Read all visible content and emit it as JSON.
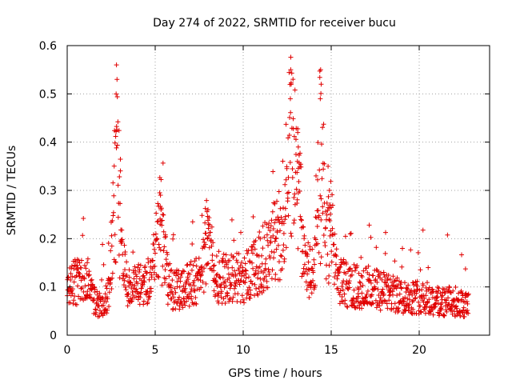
{
  "chart_data": {
    "type": "scatter",
    "title": "Day 274 of 2022, SRMTID for receiver bucu",
    "xlabel": "GPS time / hours",
    "ylabel": "SRMTID / TECUs",
    "xlim": [
      0,
      24
    ],
    "ylim": [
      0,
      0.6
    ],
    "xticks": [
      0,
      5,
      10,
      15,
      20
    ],
    "xtick_labels": [
      "0",
      "5",
      "10",
      "15",
      "20"
    ],
    "yticks": [
      0,
      0.1,
      0.2,
      0.3,
      0.4,
      0.5,
      0.6
    ],
    "ytick_labels": [
      "0",
      "0.1",
      "0.2",
      "0.3",
      "0.4",
      "0.5",
      "0.6"
    ],
    "grid": true,
    "marker": "plus",
    "series_color": "#e00000",
    "x_range": [
      0,
      22.8
    ],
    "baseline_profile": [
      [
        0.0,
        0.1
      ],
      [
        0.5,
        0.11
      ],
      [
        1.0,
        0.12
      ],
      [
        1.5,
        0.07
      ],
      [
        2.0,
        0.06
      ],
      [
        2.5,
        0.1
      ],
      [
        3.0,
        0.14
      ],
      [
        3.5,
        0.1
      ],
      [
        4.0,
        0.1
      ],
      [
        4.5,
        0.11
      ],
      [
        5.0,
        0.14
      ],
      [
        5.5,
        0.13
      ],
      [
        6.0,
        0.09
      ],
      [
        7.0,
        0.11
      ],
      [
        8.0,
        0.12
      ],
      [
        9.0,
        0.12
      ],
      [
        10.0,
        0.12
      ],
      [
        11.0,
        0.15
      ],
      [
        11.5,
        0.18
      ],
      [
        12.0,
        0.2
      ],
      [
        12.5,
        0.22
      ],
      [
        13.0,
        0.2
      ],
      [
        13.5,
        0.14
      ],
      [
        14.0,
        0.12
      ],
      [
        14.5,
        0.14
      ],
      [
        15.0,
        0.13
      ],
      [
        16.0,
        0.1
      ],
      [
        17.0,
        0.1
      ],
      [
        18.0,
        0.09
      ],
      [
        19.0,
        0.08
      ],
      [
        20.0,
        0.08
      ],
      [
        21.0,
        0.07
      ],
      [
        22.0,
        0.07
      ],
      [
        22.8,
        0.06
      ]
    ],
    "peaks": [
      [
        2.8,
        0.56
      ],
      [
        5.3,
        0.29
      ],
      [
        8.0,
        0.26
      ],
      [
        12.7,
        0.55
      ],
      [
        13.1,
        0.42
      ],
      [
        14.4,
        0.55
      ],
      [
        14.9,
        0.3
      ]
    ]
  }
}
